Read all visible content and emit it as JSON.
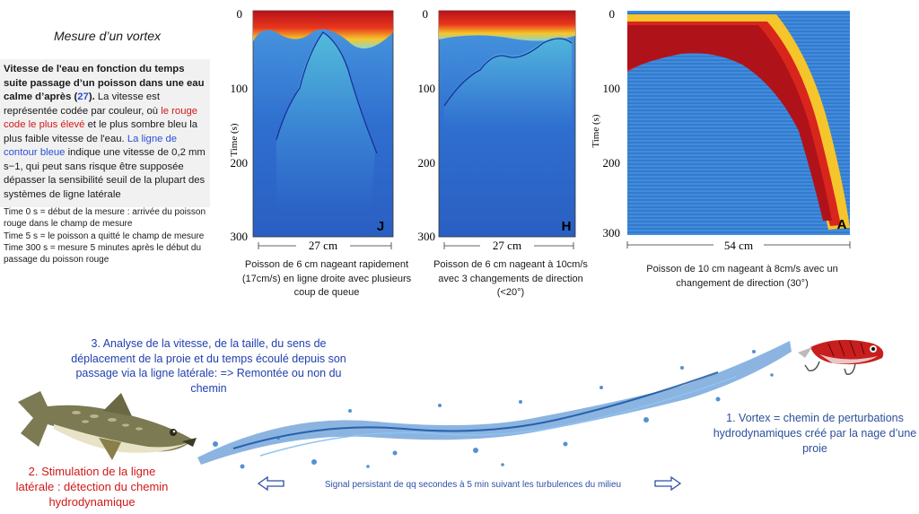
{
  "title": "Mesure d’un vortex",
  "explain": {
    "bold_lead": "Vitesse de l'eau en fonction du temps suite passage d’un poisson dans une eau calme d’après (",
    "ref": "27",
    "bold_close": ").",
    "text1": " La vitesse est représentée codée par couleur, où ",
    "red_part": "le rouge code le plus élevé",
    "text2": " et le plus sombre bleu la plus faible vitesse de l'eau. ",
    "blue_part": "La ligne de contour bleue",
    "text3": " indique une vitesse de 0,2 mm s−1, qui peut sans risque être supposée dépasser la sensibilité seuil de la plupart des systèmes de ligne latérale"
  },
  "notes": [
    "Time 0 s = début de la mesure : arrivée du poisson rouge dans le champ de mesure",
    "Time  5 s = le poisson a quitté le champ de mesure",
    "Time 300 s = mesure 5 minutes après le début du passage du poisson rouge"
  ],
  "plots": {
    "y_axis_label": "Time (s)",
    "y_ticks": [
      "0",
      "100",
      "200",
      "300"
    ],
    "panels": [
      {
        "letter": "J",
        "x_label": "27 cm",
        "caption": "Poisson de 6 cm nageant rapidement (17cm/s) en ligne droite avec plusieurs coup de queue"
      },
      {
        "letter": "H",
        "x_label": "27 cm",
        "caption": "Poisson de 6 cm nageant à 10cm/s avec 3 changements de direction (<20°)"
      },
      {
        "letter": "A",
        "x_label": "54 cm",
        "caption": "Poisson de 10 cm nageant à 8cm/s avec un changement de direction (30°)"
      }
    ]
  },
  "diagram": {
    "analysis": "3. Analyse de la vitesse, de la taille, du sens de déplacement de la proie et du temps écoulé depuis son passage via la ligne latérale: => Remontée ou non du chemin",
    "stimulation": "2. Stimulation de la ligne latérale : détection du chemin hydrodynamique",
    "vortex": "1. Vortex =  chemin de perturbations hydrodynamiques créé par la nage d’une proie",
    "signal": "Signal persistant de qq secondes à 5 min suivant les turbulences du milieu"
  },
  "colors": {
    "heat_high": "#c4161c",
    "heat_mid": "#f5d32a",
    "heat_low": "#2a6fd0",
    "analysis_text": "#1f3fae",
    "stim_text": "#d11818",
    "vortex_text": "#2d4f9c",
    "water": "#2b76c8"
  }
}
